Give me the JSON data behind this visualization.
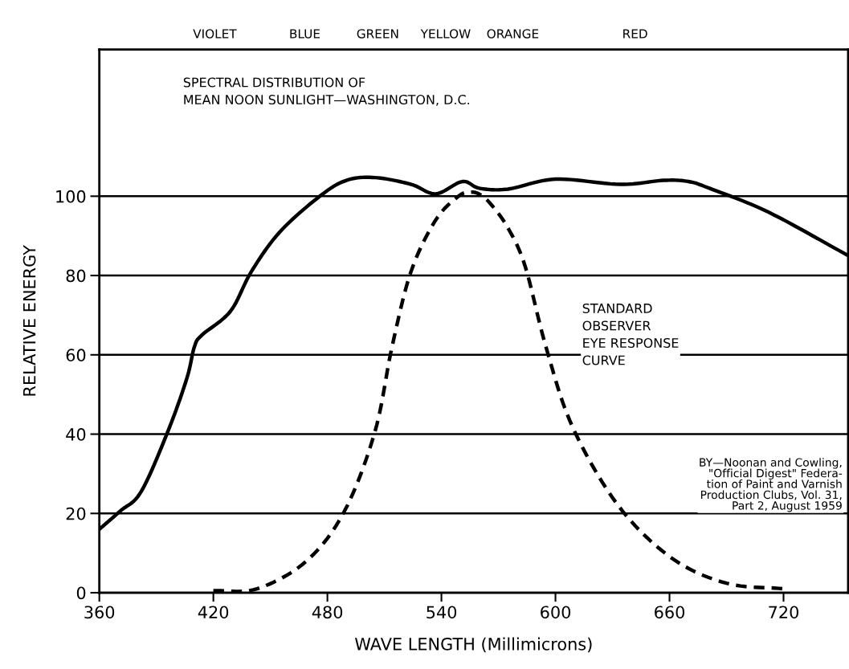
{
  "chart_data": {
    "type": "line",
    "title": "SPECTRAL DISTRIBUTION OF\nMEAN NOON SUNLIGHT—WASHINGTON, D.C.",
    "xlabel": "WAVE LENGTH (Millimicrons)",
    "ylabel": "RELATIVE ENERGY",
    "xlim": [
      360,
      754
    ],
    "ylim": [
      0,
      137
    ],
    "xticks": [
      360,
      420,
      480,
      540,
      600,
      660,
      720
    ],
    "yticks": [
      0,
      20,
      40,
      60,
      80,
      100
    ],
    "grid": "y",
    "legend": false,
    "marker": "none",
    "series": [
      {
        "color": "#000000",
        "line_style": "solid",
        "x": [
          360,
          371,
          382,
          396,
          406,
          410,
          414,
          429,
          440,
          455,
          476,
          490,
          505,
          524,
          537,
          551,
          560,
          575,
          600,
          634,
          657,
          670,
          681,
          712,
          753
        ],
        "values": [
          16,
          20.6,
          25.5,
          40.6,
          54,
          62,
          65,
          71,
          81,
          91,
          100,
          104,
          104.7,
          103,
          100.6,
          103.7,
          102,
          101.8,
          104.3,
          103,
          104,
          103.7,
          102,
          96,
          85.3
        ]
      },
      {
        "name": "STANDARD\nOBSERVER\nEYE RESPONSE\nCURVE",
        "color": "#000000",
        "line_style": "dashed",
        "x": [
          420,
          443,
          469,
          489,
          505,
          514,
          524,
          537,
          549,
          555,
          560,
          566,
          575,
          584,
          595,
          609,
          633,
          661,
          690,
          720
        ],
        "values": [
          0.5,
          1,
          8,
          20.6,
          40.6,
          62,
          81,
          94,
          100,
          101,
          100.5,
          98,
          92,
          82.4,
          62,
          41.8,
          22,
          8.8,
          2.4,
          1
        ]
      }
    ],
    "annotations": [
      "VIOLET",
      "BLUE",
      "GREEN",
      "YELLOW",
      "ORANGE",
      "RED",
      "BY—Noonan and Cowling,\n\"Official Digest\" Federa-\ntion of Paint and Varnish\nProduction Clubs, Vol. 31,\nPart 2, August 1959"
    ]
  }
}
